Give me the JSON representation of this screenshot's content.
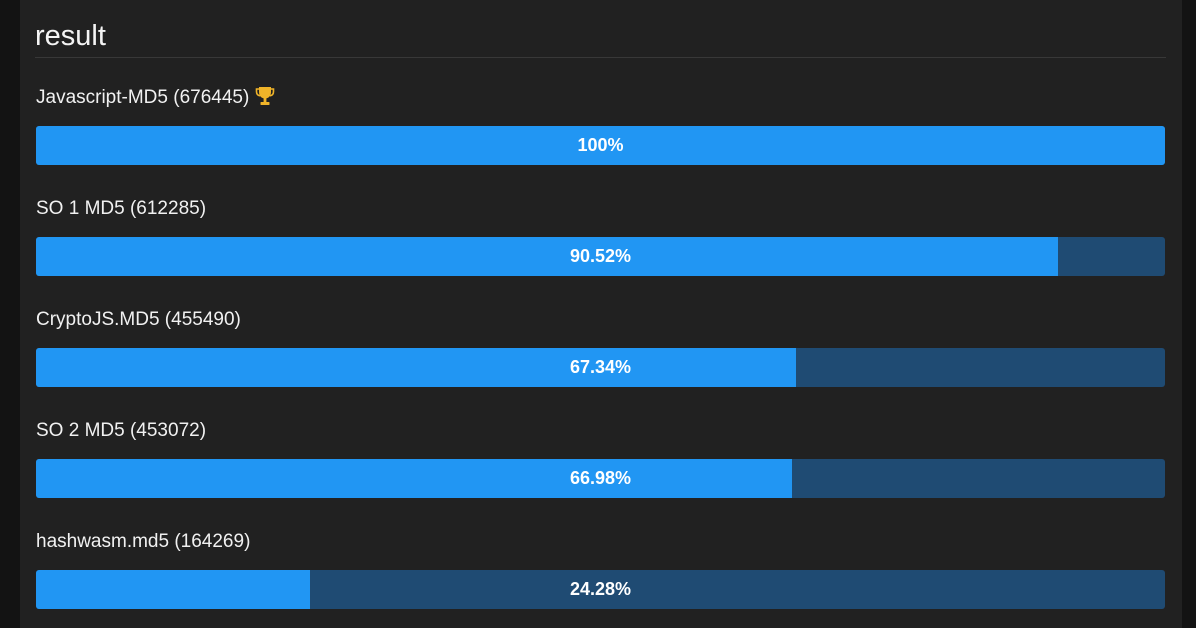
{
  "panel": {
    "title": "result"
  },
  "results": [
    {
      "label": "Javascript-MD5 (676445)",
      "percent_text": "100%",
      "fraction": 1.0,
      "winner": true
    },
    {
      "label": "SO 1 MD5 (612285)",
      "percent_text": "90.52%",
      "fraction": 0.9052,
      "winner": false
    },
    {
      "label": "CryptoJS.MD5 (455490)",
      "percent_text": "67.34%",
      "fraction": 0.6734,
      "winner": false
    },
    {
      "label": "SO 2 MD5 (453072)",
      "percent_text": "66.98%",
      "fraction": 0.6698,
      "winner": false
    },
    {
      "label": "hashwasm.md5 (164269)",
      "percent_text": "24.28%",
      "fraction": 0.2428,
      "winner": false
    }
  ],
  "icons": {
    "winner": "trophy-icon"
  },
  "colors": {
    "background": "#131313",
    "panel": "#212121",
    "bar_fill": "#2196f3",
    "bar_track": "#1f4b73",
    "trophy": "#f0b429",
    "text": "#f2f2f2"
  }
}
